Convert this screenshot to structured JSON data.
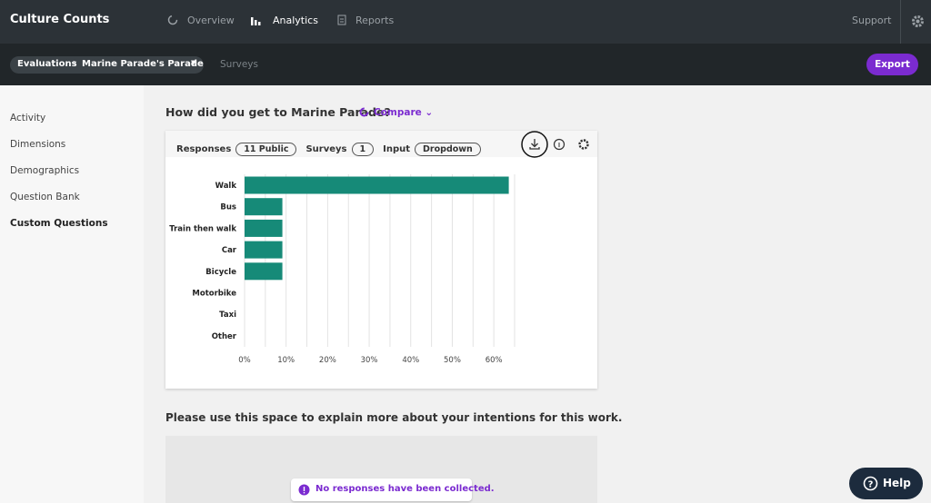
{
  "header": {
    "brand": "Culture Counts",
    "nav": [
      "Overview",
      "Analytics",
      "Reports"
    ],
    "active_nav": 1,
    "support": "Support"
  },
  "subbar": {
    "breadcrumb": [
      "Evaluations",
      "Marine Parade's Parade"
    ],
    "tab": "Surveys",
    "export": "Export"
  },
  "sidebar": {
    "items": [
      "Activity",
      "Dimensions",
      "Demographics",
      "Question Bank",
      "Custom Questions"
    ],
    "active": 4
  },
  "question1": {
    "title": "How did you get to Marine Parade?",
    "compare": "Compare",
    "filters": [
      {
        "label": "Responses",
        "value": "11 Public"
      },
      {
        "label": "Surveys",
        "value": "1"
      },
      {
        "label": "Input",
        "value": "Dropdown"
      }
    ]
  },
  "chart_data": {
    "type": "bar",
    "orientation": "horizontal",
    "categories": [
      "Walk",
      "Bus",
      "Train then walk",
      "Car",
      "Bicycle",
      "Motorbike",
      "Taxi",
      "Other"
    ],
    "values": [
      63.6,
      9.1,
      9.1,
      9.1,
      9.1,
      0,
      0,
      0
    ],
    "color": "#168a78",
    "xlim": [
      0,
      65
    ],
    "xticks": [
      {
        "value": 0,
        "label": "0%"
      },
      {
        "value": 10,
        "label": "10%"
      },
      {
        "value": 20,
        "label": "20%"
      },
      {
        "value": 30,
        "label": "30%"
      },
      {
        "value": 40,
        "label": "40%"
      },
      {
        "value": 50,
        "label": "50%"
      },
      {
        "value": 60,
        "label": "60%"
      }
    ],
    "minor_xticks": [
      5,
      15,
      25,
      35,
      45,
      55,
      65
    ],
    "grid": true
  },
  "question2": {
    "title": "Please use this space to explain more about your intentions for this work.",
    "empty_message": "No responses have been collected."
  },
  "help": "Help"
}
